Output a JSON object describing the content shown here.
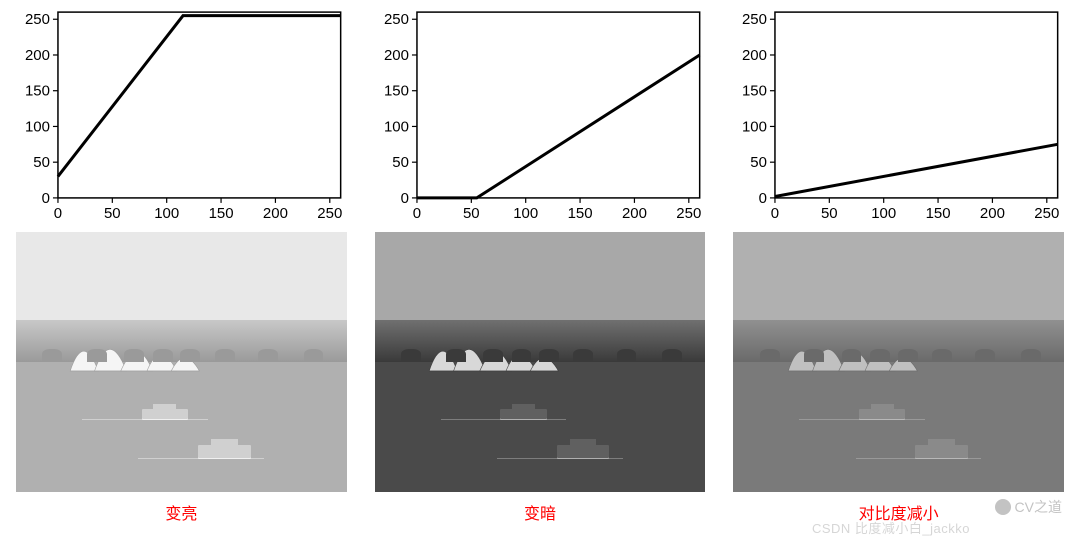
{
  "charts": [
    {
      "type": "line",
      "xlim": [
        0,
        260
      ],
      "ylim": [
        0,
        260
      ],
      "xticks": [
        0,
        50,
        100,
        150,
        200,
        250
      ],
      "yticks": [
        0,
        50,
        100,
        150,
        200,
        250
      ],
      "points": [
        [
          0,
          30
        ],
        [
          115,
          255
        ],
        [
          260,
          255
        ]
      ],
      "line_color": "#000000",
      "line_width": 3,
      "label_fontsize": 15,
      "background_color": "#ffffff",
      "border_color": "#000000"
    },
    {
      "type": "line",
      "xlim": [
        0,
        260
      ],
      "ylim": [
        0,
        260
      ],
      "xticks": [
        0,
        50,
        100,
        150,
        200,
        250
      ],
      "yticks": [
        0,
        50,
        100,
        150,
        200,
        250
      ],
      "points": [
        [
          0,
          0
        ],
        [
          55,
          0
        ],
        [
          260,
          200
        ]
      ],
      "line_color": "#000000",
      "line_width": 3,
      "label_fontsize": 15,
      "background_color": "#ffffff",
      "border_color": "#000000"
    },
    {
      "type": "line",
      "xlim": [
        0,
        260
      ],
      "ylim": [
        0,
        260
      ],
      "xticks": [
        0,
        50,
        100,
        150,
        200,
        250
      ],
      "yticks": [
        0,
        50,
        100,
        150,
        200,
        250
      ],
      "points": [
        [
          0,
          2
        ],
        [
          260,
          75
        ]
      ],
      "line_color": "#000000",
      "line_width": 3,
      "label_fontsize": 15,
      "background_color": "#ffffff",
      "border_color": "#000000"
    }
  ],
  "images": [
    {
      "label": "变亮",
      "sky_color": "#e8e8e8",
      "sky_height_pct": 38,
      "land_color": "#c8c8c8",
      "land_top_pct": 34,
      "land_height_pct": 16,
      "trees_color": "#9a9a9a",
      "opera_color": "#f5f5f5",
      "water_color": "#b0b0b0",
      "water_top_pct": 50,
      "boat_color": "#d0d0d0",
      "wake_color": "#f0f0f0"
    },
    {
      "label": "变暗",
      "sky_color": "#a8a8a8",
      "sky_height_pct": 38,
      "land_color": "#707070",
      "land_top_pct": 34,
      "land_height_pct": 16,
      "trees_color": "#3a3a3a",
      "opera_color": "#d8d8d8",
      "water_color": "#4a4a4a",
      "water_top_pct": 50,
      "boat_color": "#606060",
      "wake_color": "#b0b0b0"
    },
    {
      "label": "对比度减小",
      "sky_color": "#b0b0b0",
      "sky_height_pct": 38,
      "land_color": "#909090",
      "land_top_pct": 34,
      "land_height_pct": 16,
      "trees_color": "#6a6a6a",
      "opera_color": "#c0c0c0",
      "water_color": "#7a7a7a",
      "water_top_pct": 50,
      "boat_color": "#8a8a8a",
      "wake_color": "#b8b8b8"
    }
  ],
  "caption_color": "#ff0000",
  "caption_fontsize": 16,
  "watermark1": "CV之道",
  "watermark2": "CSDN  比度减小白_jackko"
}
